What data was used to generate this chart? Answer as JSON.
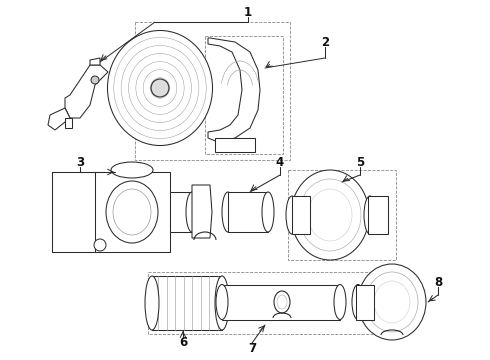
{
  "bg_color": "#ffffff",
  "line_color": "#2a2a2a",
  "label_color": "#111111",
  "fig_width": 4.9,
  "fig_height": 3.6,
  "dpi": 100,
  "label_fontsize": 8.5,
  "line_width": 0.75
}
